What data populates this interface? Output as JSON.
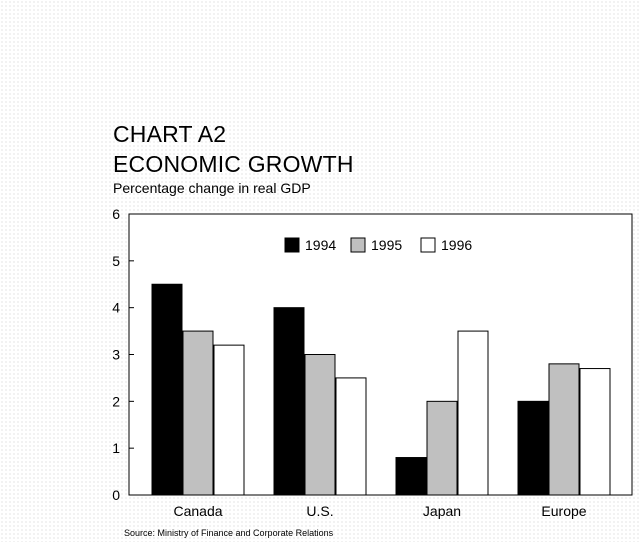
{
  "chart_data": {
    "type": "bar",
    "title_line1": "CHART A2",
    "title_line2": "ECONOMIC GROWTH",
    "subtitle": "Percentage change in real GDP",
    "categories": [
      "Canada",
      "U.S.",
      "Japan",
      "Europe"
    ],
    "series": [
      {
        "name": "1994",
        "values": [
          4.5,
          4.0,
          0.8,
          2.0
        ],
        "color": "#000000"
      },
      {
        "name": "1995",
        "values": [
          3.5,
          3.0,
          2.0,
          2.8
        ],
        "color": "#c0c0c0"
      },
      {
        "name": "1996",
        "values": [
          3.2,
          2.5,
          3.5,
          2.7
        ],
        "color": "#ffffff"
      }
    ],
    "ylim": [
      0,
      6
    ],
    "yticks": [
      "0",
      "1",
      "2",
      "3",
      "4",
      "5",
      "6"
    ],
    "legend_position": "top-center",
    "grid": false,
    "source": "Source: Ministry of Finance and Corporate Relations"
  }
}
